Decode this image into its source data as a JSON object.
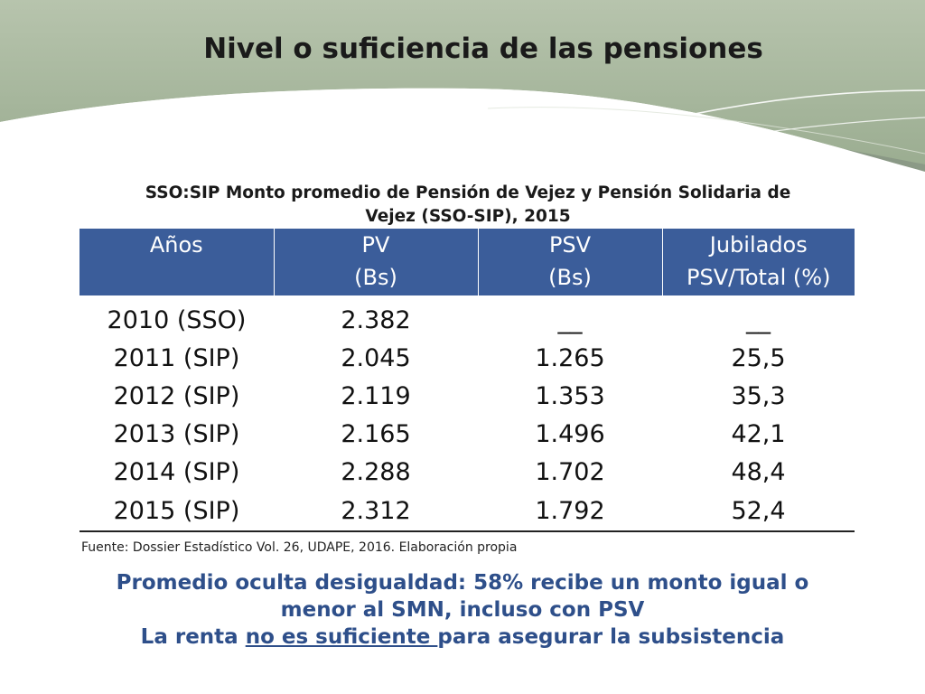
{
  "slide": {
    "title": "Nivel o suficiencia de las pensiones"
  },
  "theme": {
    "header_bg": "#3b5d9a",
    "conclusion_color": "#2e4f8a",
    "banner_green": "#a8b89e"
  },
  "table": {
    "caption_line1": "SSO:SIP Monto promedio de Pensión de Vejez y Pensión Solidaria de",
    "caption_line2": "Vejez (SSO-SIP), 2015",
    "headers": [
      {
        "line1": "Años",
        "line2": ""
      },
      {
        "line1": "PV",
        "line2": "(Bs)"
      },
      {
        "line1": "PSV",
        "line2": "(Bs)"
      },
      {
        "line1": "Jubilados",
        "line2": "PSV/Total (%)"
      }
    ],
    "rows": [
      [
        "2010 (SSO)",
        "2.382",
        "__",
        "__"
      ],
      [
        "2011 (SIP)",
        "2.045",
        "1.265",
        "25,5"
      ],
      [
        "2012 (SIP)",
        "2.119",
        "1.353",
        "35,3"
      ],
      [
        "2013 (SIP)",
        "2.165",
        "1.496",
        "42,1"
      ],
      [
        "2014 (SIP)",
        "2.288",
        "1.702",
        "48,4"
      ],
      [
        "2015 (SIP)",
        "2.312",
        "1.792",
        "52,4"
      ]
    ],
    "source": "Fuente: Dossier Estadístico Vol. 26, UDAPE, 2016. Elaboración propia"
  },
  "conclusion": {
    "line1": "Promedio oculta desigualdad: 58% recibe un monto igual o",
    "line2": "menor al SMN, incluso con PSV",
    "line3_before": "La renta ",
    "line3_underlined": "no es suficiente ",
    "line3_after": "para asegurar la subsistencia"
  }
}
